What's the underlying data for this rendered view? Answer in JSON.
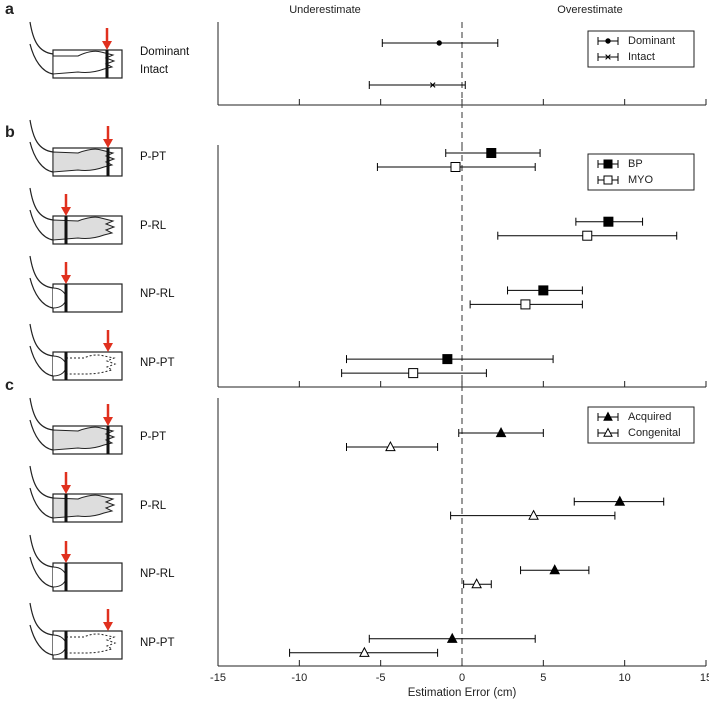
{
  "chart_data": [
    {
      "type": "errorbar",
      "panel_label": "a",
      "annotations": [
        "Underestimate",
        "Overestimate"
      ],
      "categories": [
        "Dominant\nIntact"
      ],
      "series": [
        {
          "name": "Dominant",
          "marker": "circle",
          "color": "#000000",
          "face": "#000000",
          "values": [
            -1.4
          ],
          "lower": [
            -4.9
          ],
          "upper": [
            2.2
          ]
        },
        {
          "name": "Intact",
          "marker": "x",
          "color": "#000000",
          "face": "#000000",
          "values": [
            -1.8
          ],
          "lower": [
            -5.7
          ],
          "upper": [
            0.2
          ]
        }
      ],
      "xlim": [
        -15,
        15
      ],
      "xticks": [
        -15,
        -10,
        -5,
        0,
        5,
        10,
        15
      ],
      "show_xtick_labels": false,
      "vline": 0,
      "legend": "upper right"
    },
    {
      "type": "errorbar",
      "panel_label": "b",
      "categories": [
        "P-PT",
        "P-RL",
        "NP-RL",
        "NP-PT"
      ],
      "series": [
        {
          "name": "BP",
          "marker": "square",
          "color": "#000000",
          "face": "#000000",
          "values": [
            1.8,
            9.0,
            5.0,
            -0.9
          ],
          "lower": [
            -1.0,
            7.0,
            2.8,
            -7.1
          ],
          "upper": [
            4.8,
            11.1,
            7.4,
            5.6
          ]
        },
        {
          "name": "MYO",
          "marker": "square",
          "color": "#000000",
          "face": "#ffffff",
          "values": [
            -0.4,
            7.7,
            3.9,
            -3.0
          ],
          "lower": [
            -5.2,
            2.2,
            0.5,
            -7.4
          ],
          "upper": [
            4.5,
            13.2,
            7.4,
            1.5
          ]
        }
      ],
      "xlim": [
        -15,
        15
      ],
      "xticks": [
        -15,
        -10,
        -5,
        0,
        5,
        10,
        15
      ],
      "show_xtick_labels": false,
      "vline": 0,
      "legend": "upper right"
    },
    {
      "type": "errorbar",
      "panel_label": "c",
      "xlabel": "Estimation Error (cm)",
      "categories": [
        "P-PT",
        "P-RL",
        "NP-RL",
        "NP-PT"
      ],
      "series": [
        {
          "name": "Acquired",
          "marker": "triangle",
          "color": "#000000",
          "face": "#000000",
          "values": [
            2.4,
            9.7,
            5.7,
            -0.6
          ],
          "lower": [
            -0.2,
            6.9,
            3.6,
            -5.7
          ],
          "upper": [
            5.0,
            12.4,
            7.8,
            4.5
          ]
        },
        {
          "name": "Congenital",
          "marker": "triangle",
          "color": "#000000",
          "face": "#ffffff",
          "values": [
            -4.4,
            4.4,
            0.9,
            -6.0
          ],
          "lower": [
            -7.1,
            -0.7,
            0.1,
            -10.6
          ],
          "upper": [
            -1.5,
            9.4,
            1.8,
            -1.5
          ]
        }
      ],
      "xlim": [
        -15,
        15
      ],
      "xticks": [
        -15,
        -10,
        -5,
        0,
        5,
        10,
        15
      ],
      "show_xtick_labels": true,
      "vline": 0,
      "legend": "upper right"
    }
  ]
}
